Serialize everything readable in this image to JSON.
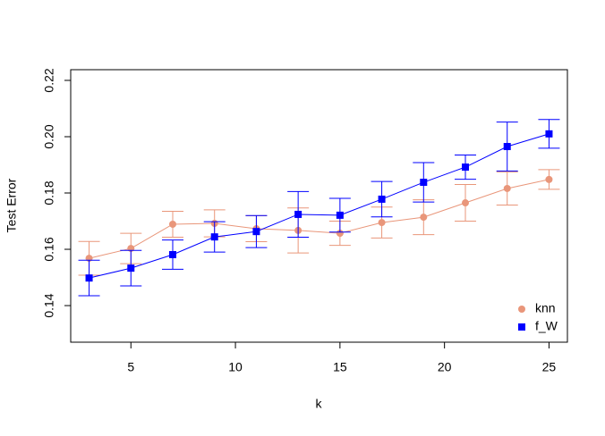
{
  "chart_data": {
    "type": "errorbar_line",
    "xlabel": "k",
    "ylabel": "Test Error",
    "x": [
      3,
      5,
      7,
      9,
      11,
      13,
      15,
      17,
      19,
      21,
      23,
      25
    ],
    "series": [
      {
        "name": "knn",
        "color": "#e9967a",
        "marker": "circle",
        "values": [
          0.1568,
          0.1603,
          0.1689,
          0.1692,
          0.1673,
          0.1667,
          0.1657,
          0.1695,
          0.1714,
          0.1765,
          0.1816,
          0.1848
        ],
        "errors": [
          0.006,
          0.0054,
          0.0046,
          0.0048,
          0.0046,
          0.008,
          0.0043,
          0.0055,
          0.0062,
          0.0065,
          0.0059,
          0.0035
        ]
      },
      {
        "name": "f_W",
        "color": "#0000ff",
        "marker": "square",
        "values": [
          0.1498,
          0.1533,
          0.1581,
          0.1644,
          0.1663,
          0.1724,
          0.1721,
          0.1778,
          0.1838,
          0.1892,
          0.1965,
          0.201
        ],
        "errors": [
          0.0063,
          0.0063,
          0.0052,
          0.0054,
          0.0057,
          0.0081,
          0.006,
          0.0063,
          0.007,
          0.0043,
          0.0087,
          0.0051
        ]
      }
    ],
    "xlim": [
      2.12,
      25.88
    ],
    "xticks": [
      5,
      10,
      15,
      20,
      25
    ],
    "ylim": [
      0.127,
      0.2238
    ],
    "yticks": [
      0.14,
      0.16,
      0.18,
      {
        "value": 0.2,
        "label": "0.20"
      },
      0.22
    ],
    "legend": "bottom-right"
  }
}
